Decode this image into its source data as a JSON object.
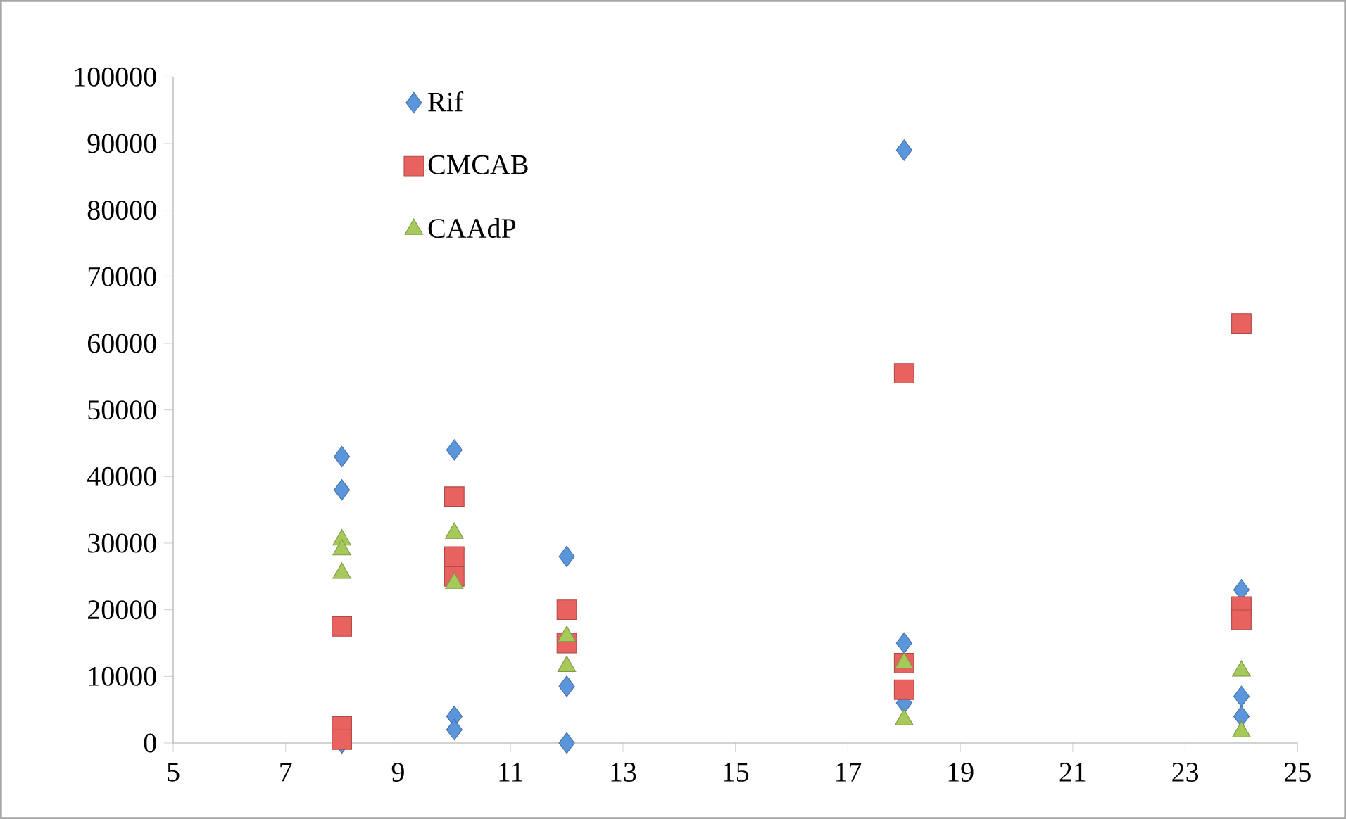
{
  "chart_data": {
    "type": "scatter",
    "xlim": [
      5,
      25
    ],
    "xticks": [
      5,
      7,
      9,
      11,
      13,
      15,
      17,
      19,
      21,
      23,
      25
    ],
    "ylim": [
      0,
      100000
    ],
    "yticks": [
      0,
      10000,
      20000,
      30000,
      40000,
      50000,
      60000,
      70000,
      80000,
      90000,
      100000
    ],
    "grid": false,
    "legend": "top left",
    "series": [
      {
        "name": "Rif",
        "color": "#5b95dc",
        "marker": "diamond",
        "x": [
          8,
          8,
          8,
          10,
          10,
          10,
          12,
          12,
          12,
          18,
          18,
          18,
          24,
          24,
          24
        ],
        "values": [
          43000,
          38000,
          0,
          44000,
          4000,
          2000,
          28000,
          8500,
          0,
          89000,
          15000,
          6000,
          23000,
          7000,
          4000
        ]
      },
      {
        "name": "CMCAB",
        "color": "#e8625f",
        "marker": "square",
        "x": [
          8,
          8,
          8,
          10,
          10,
          10,
          12,
          12,
          18,
          18,
          18,
          24,
          24,
          24
        ],
        "values": [
          17500,
          2500,
          500,
          37000,
          28000,
          25000,
          20000,
          15000,
          55500,
          12000,
          8000,
          63000,
          20500,
          18500
        ]
      },
      {
        "name": "CAAdP",
        "color": "#a6c95a",
        "marker": "triangle",
        "x": [
          8,
          8,
          8,
          10,
          10,
          12,
          12,
          18,
          18,
          24,
          24
        ],
        "values": [
          30500,
          29000,
          25500,
          31500,
          24000,
          16000,
          11500,
          12000,
          3500,
          10800,
          1700
        ]
      }
    ]
  }
}
